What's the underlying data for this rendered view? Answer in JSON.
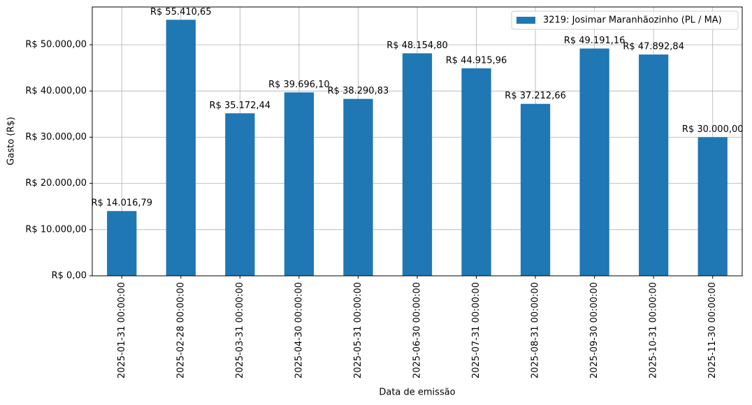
{
  "chart_data": {
    "type": "bar",
    "xlabel": "Data de emissão",
    "ylabel": "Gasto (R$)",
    "categories": [
      "2025-01-31 00:00:00",
      "2025-02-28 00:00:00",
      "2025-03-31 00:00:00",
      "2025-04-30 00:00:00",
      "2025-05-31 00:00:00",
      "2025-06-30 00:00:00",
      "2025-07-31 00:00:00",
      "2025-08-31 00:00:00",
      "2025-09-30 00:00:00",
      "2025-10-31 00:00:00",
      "2025-11-30 00:00:00"
    ],
    "series": [
      {
        "name": "3219: Josimar Maranhãozinho (PL / MA)",
        "color": "#1f77b4",
        "values": [
          14016.79,
          55410.65,
          35172.44,
          39696.1,
          38290.83,
          48154.8,
          44915.96,
          37212.66,
          49191.16,
          47892.84,
          30000.0
        ],
        "value_labels": [
          "R$ 14.016,79",
          "R$ 55.410,65",
          "R$ 35.172,44",
          "R$ 39.696,10",
          "R$ 38.290,83",
          "R$ 48.154,80",
          "R$ 44.915,96",
          "R$ 37.212,66",
          "R$ 49.191,16",
          "R$ 47.892,84",
          "R$ 30.000,00"
        ]
      }
    ],
    "ylim": [
      0,
      58180
    ],
    "yticks": [
      {
        "value": 0,
        "label": "R$ 0,00"
      },
      {
        "value": 10000,
        "label": "R$ 10.000,00"
      },
      {
        "value": 20000,
        "label": "R$ 20.000,00"
      },
      {
        "value": 30000,
        "label": "R$ 30.000,00"
      },
      {
        "value": 40000,
        "label": "R$ 40.000,00"
      },
      {
        "value": 50000,
        "label": "R$ 50.000,00"
      }
    ],
    "grid": true,
    "legend": "upper right"
  }
}
